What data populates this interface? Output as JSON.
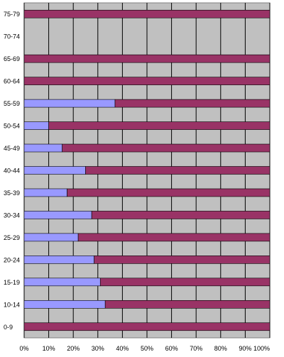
{
  "chart_data": {
    "type": "bar",
    "orientation": "horizontal",
    "stacked": true,
    "normalized": true,
    "title": "",
    "xlabel": "",
    "ylabel": "",
    "categories": [
      "75-79",
      "70-74",
      "65-69",
      "60-64",
      "55-59",
      "50-54",
      "45-49",
      "40-44",
      "35-39",
      "30-34",
      "25-29",
      "20-24",
      "15-19",
      "10-14",
      "0-9"
    ],
    "x_ticks": [
      "0%",
      "10%",
      "20%",
      "30%",
      "40%",
      "50%",
      "60%",
      "70%",
      "80%",
      "90%",
      "100%"
    ],
    "xlim": [
      0,
      100
    ],
    "grid": true,
    "legend": "none",
    "series": [
      {
        "values": [
          0,
          0,
          0,
          0,
          37,
          10,
          15.5,
          25,
          17.5,
          27.5,
          22,
          28.5,
          31,
          33,
          0
        ]
      },
      {
        "values": [
          100,
          0,
          100,
          100,
          63,
          90,
          84.5,
          75,
          82.5,
          72.5,
          78,
          71.5,
          69,
          67,
          100
        ]
      }
    ],
    "colors": {
      "series_1": "#9999ff",
      "series_2": "#993366",
      "plot_background": "#c0c0c0",
      "gridline": "#000000"
    }
  }
}
